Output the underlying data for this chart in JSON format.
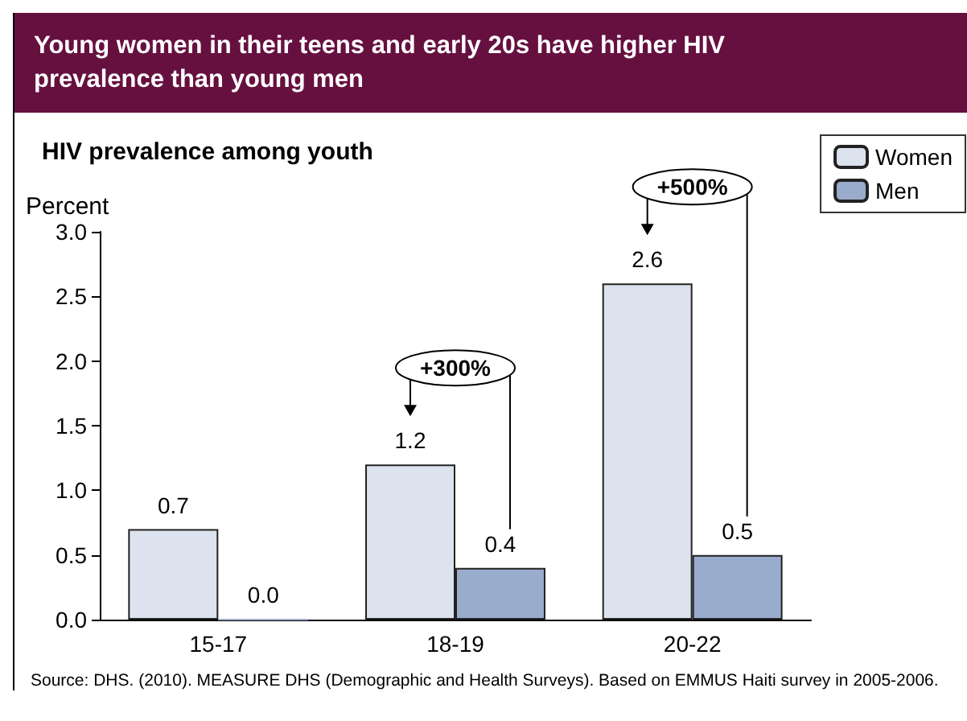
{
  "chart_data": {
    "type": "bar",
    "title": "Young women in their teens and early 20s have higher HIV prevalence than young men",
    "subtitle": "HIV prevalence among youth",
    "ylabel": "Percent",
    "categories": [
      "15-17",
      "18-19",
      "20-22"
    ],
    "series": [
      {
        "name": "Women",
        "color": "#dce3ee",
        "values": [
          0.7,
          1.2,
          2.6
        ],
        "value_labels": [
          "0.7",
          "1.2",
          "2.6"
        ]
      },
      {
        "name": "Men",
        "color": "#9aaccc",
        "values": [
          0.0,
          0.4,
          0.5
        ],
        "value_labels": [
          "0.0",
          "0.4",
          "0.5"
        ]
      }
    ],
    "ylim": [
      0,
      3.0
    ],
    "yticks": [
      "0.0",
      "0.5",
      "1.0",
      "1.5",
      "2.0",
      "2.5",
      "3.0"
    ],
    "grid": false,
    "legend": "top right",
    "annotations": [
      "+300%",
      "+500%",
      "Source: DHS. (2010). MEASURE DHS (Demographic and Health Surveys). Based on EMMUS Haiti survey in 2005-2006."
    ]
  }
}
